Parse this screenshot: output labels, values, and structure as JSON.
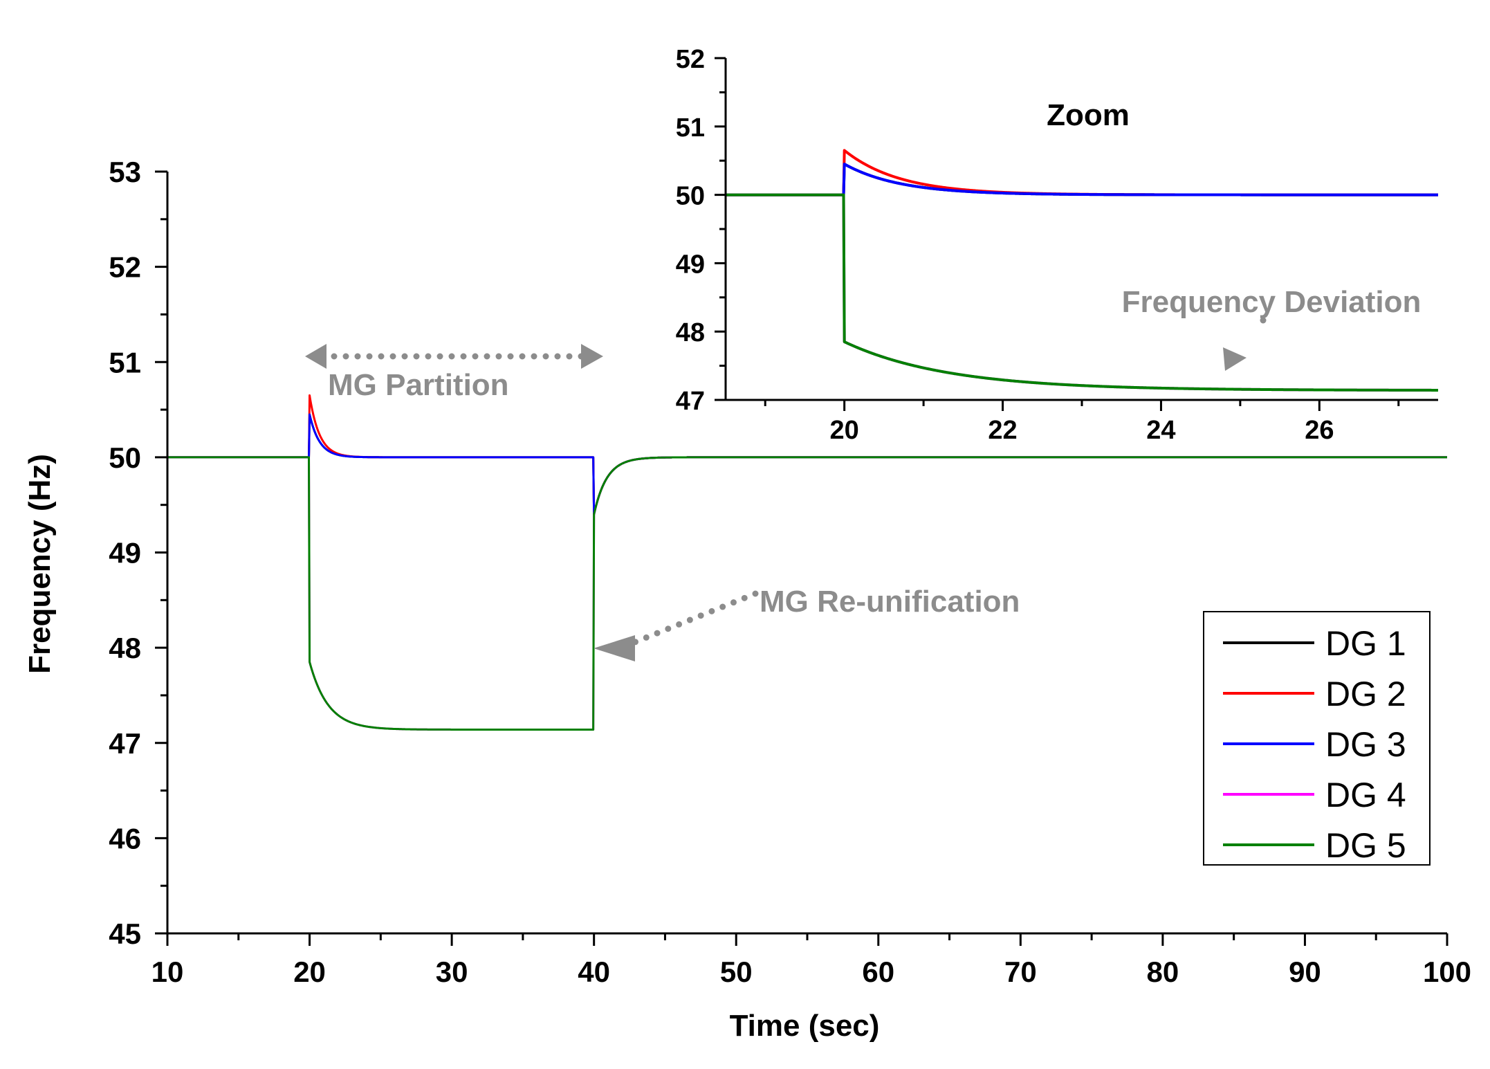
{
  "chart_data": [
    {
      "id": "main",
      "type": "line",
      "title": "",
      "xlabel": "Time (sec)",
      "ylabel": "Frequency (Hz)",
      "xlim": [
        10,
        100
      ],
      "ylim": [
        45,
        53
      ],
      "xticks": [
        10,
        20,
        30,
        40,
        50,
        60,
        70,
        80,
        90,
        100
      ],
      "xtick_labels": [
        "10",
        "20",
        "30",
        "40",
        "50",
        "60",
        "70",
        "80",
        "90",
        "100"
      ],
      "yticks": [
        45,
        46,
        47,
        48,
        49,
        50,
        51,
        52,
        53
      ],
      "ytick_labels": [
        "45",
        "46",
        "47",
        "48",
        "49",
        "50",
        "51",
        "52",
        "53"
      ],
      "grid": false,
      "series": [
        {
          "name": "DG 1",
          "color": "#000000",
          "group": "A"
        },
        {
          "name": "DG 2",
          "color": "#ff0000",
          "group": "A",
          "spike_peak": 50.65
        },
        {
          "name": "DG 3",
          "color": "#0000ff",
          "group": "A",
          "spike_peak": 50.45
        },
        {
          "name": "DG 4",
          "color": "#ff00ff",
          "group": "B"
        },
        {
          "name": "DG 5",
          "color": "#008000",
          "group": "B"
        }
      ],
      "events": {
        "partition_time": 20,
        "reunification_time": 40,
        "group_A_settled": 50.0,
        "group_B_initial_drop": 47.85,
        "group_B_settled": 47.14,
        "reunification_dip": 49.4,
        "final_value": 50.0
      },
      "annotations": {
        "partition": "MG Partition",
        "reunification": "MG Re-unification"
      },
      "legend": {
        "position": "lower-right",
        "entries": [
          "DG 1",
          "DG 2",
          "DG 3",
          "DG 4",
          "DG 5"
        ]
      }
    },
    {
      "id": "inset",
      "type": "line",
      "title": "Zoom",
      "xlim": [
        18.5,
        27.5
      ],
      "ylim": [
        47,
        52
      ],
      "xticks": [
        20,
        22,
        24,
        26
      ],
      "xtick_labels": [
        "20",
        "22",
        "24",
        "26"
      ],
      "yticks": [
        47,
        48,
        49,
        50,
        51,
        52
      ],
      "ytick_labels": [
        "47",
        "48",
        "49",
        "50",
        "51",
        "52"
      ],
      "annotation": "Frequency Deviation"
    }
  ],
  "colors": {
    "annotation_gray": "#8c8c8c"
  }
}
